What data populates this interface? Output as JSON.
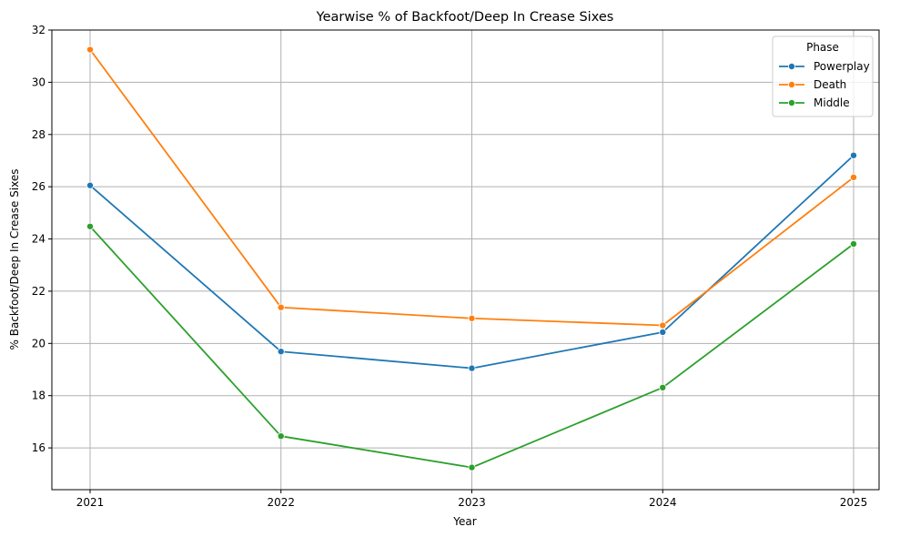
{
  "chart_data": {
    "type": "line",
    "title": "Yearwise % of Backfoot/Deep In Crease Sixes",
    "xlabel": "Year",
    "ylabel": "% Backfoot/Deep In Crease Sixes",
    "x": [
      "2021",
      "2022",
      "2023",
      "2024",
      "2025"
    ],
    "yticks": [
      16,
      18,
      20,
      22,
      24,
      26,
      28,
      30,
      32
    ],
    "ylim": [
      14.4,
      32.0
    ],
    "grid": true,
    "legend": {
      "title": "Phase",
      "placement": "top-right"
    },
    "series": [
      {
        "name": "Powerplay",
        "color": "#1f77b4",
        "values": [
          26.05,
          19.69,
          19.05,
          20.43,
          27.2
        ]
      },
      {
        "name": "Death",
        "color": "#ff7f0e",
        "values": [
          31.25,
          21.38,
          20.96,
          20.69,
          26.36
        ]
      },
      {
        "name": "Middle",
        "color": "#2ca02c",
        "values": [
          24.48,
          16.45,
          15.25,
          18.31,
          23.81
        ]
      }
    ]
  }
}
